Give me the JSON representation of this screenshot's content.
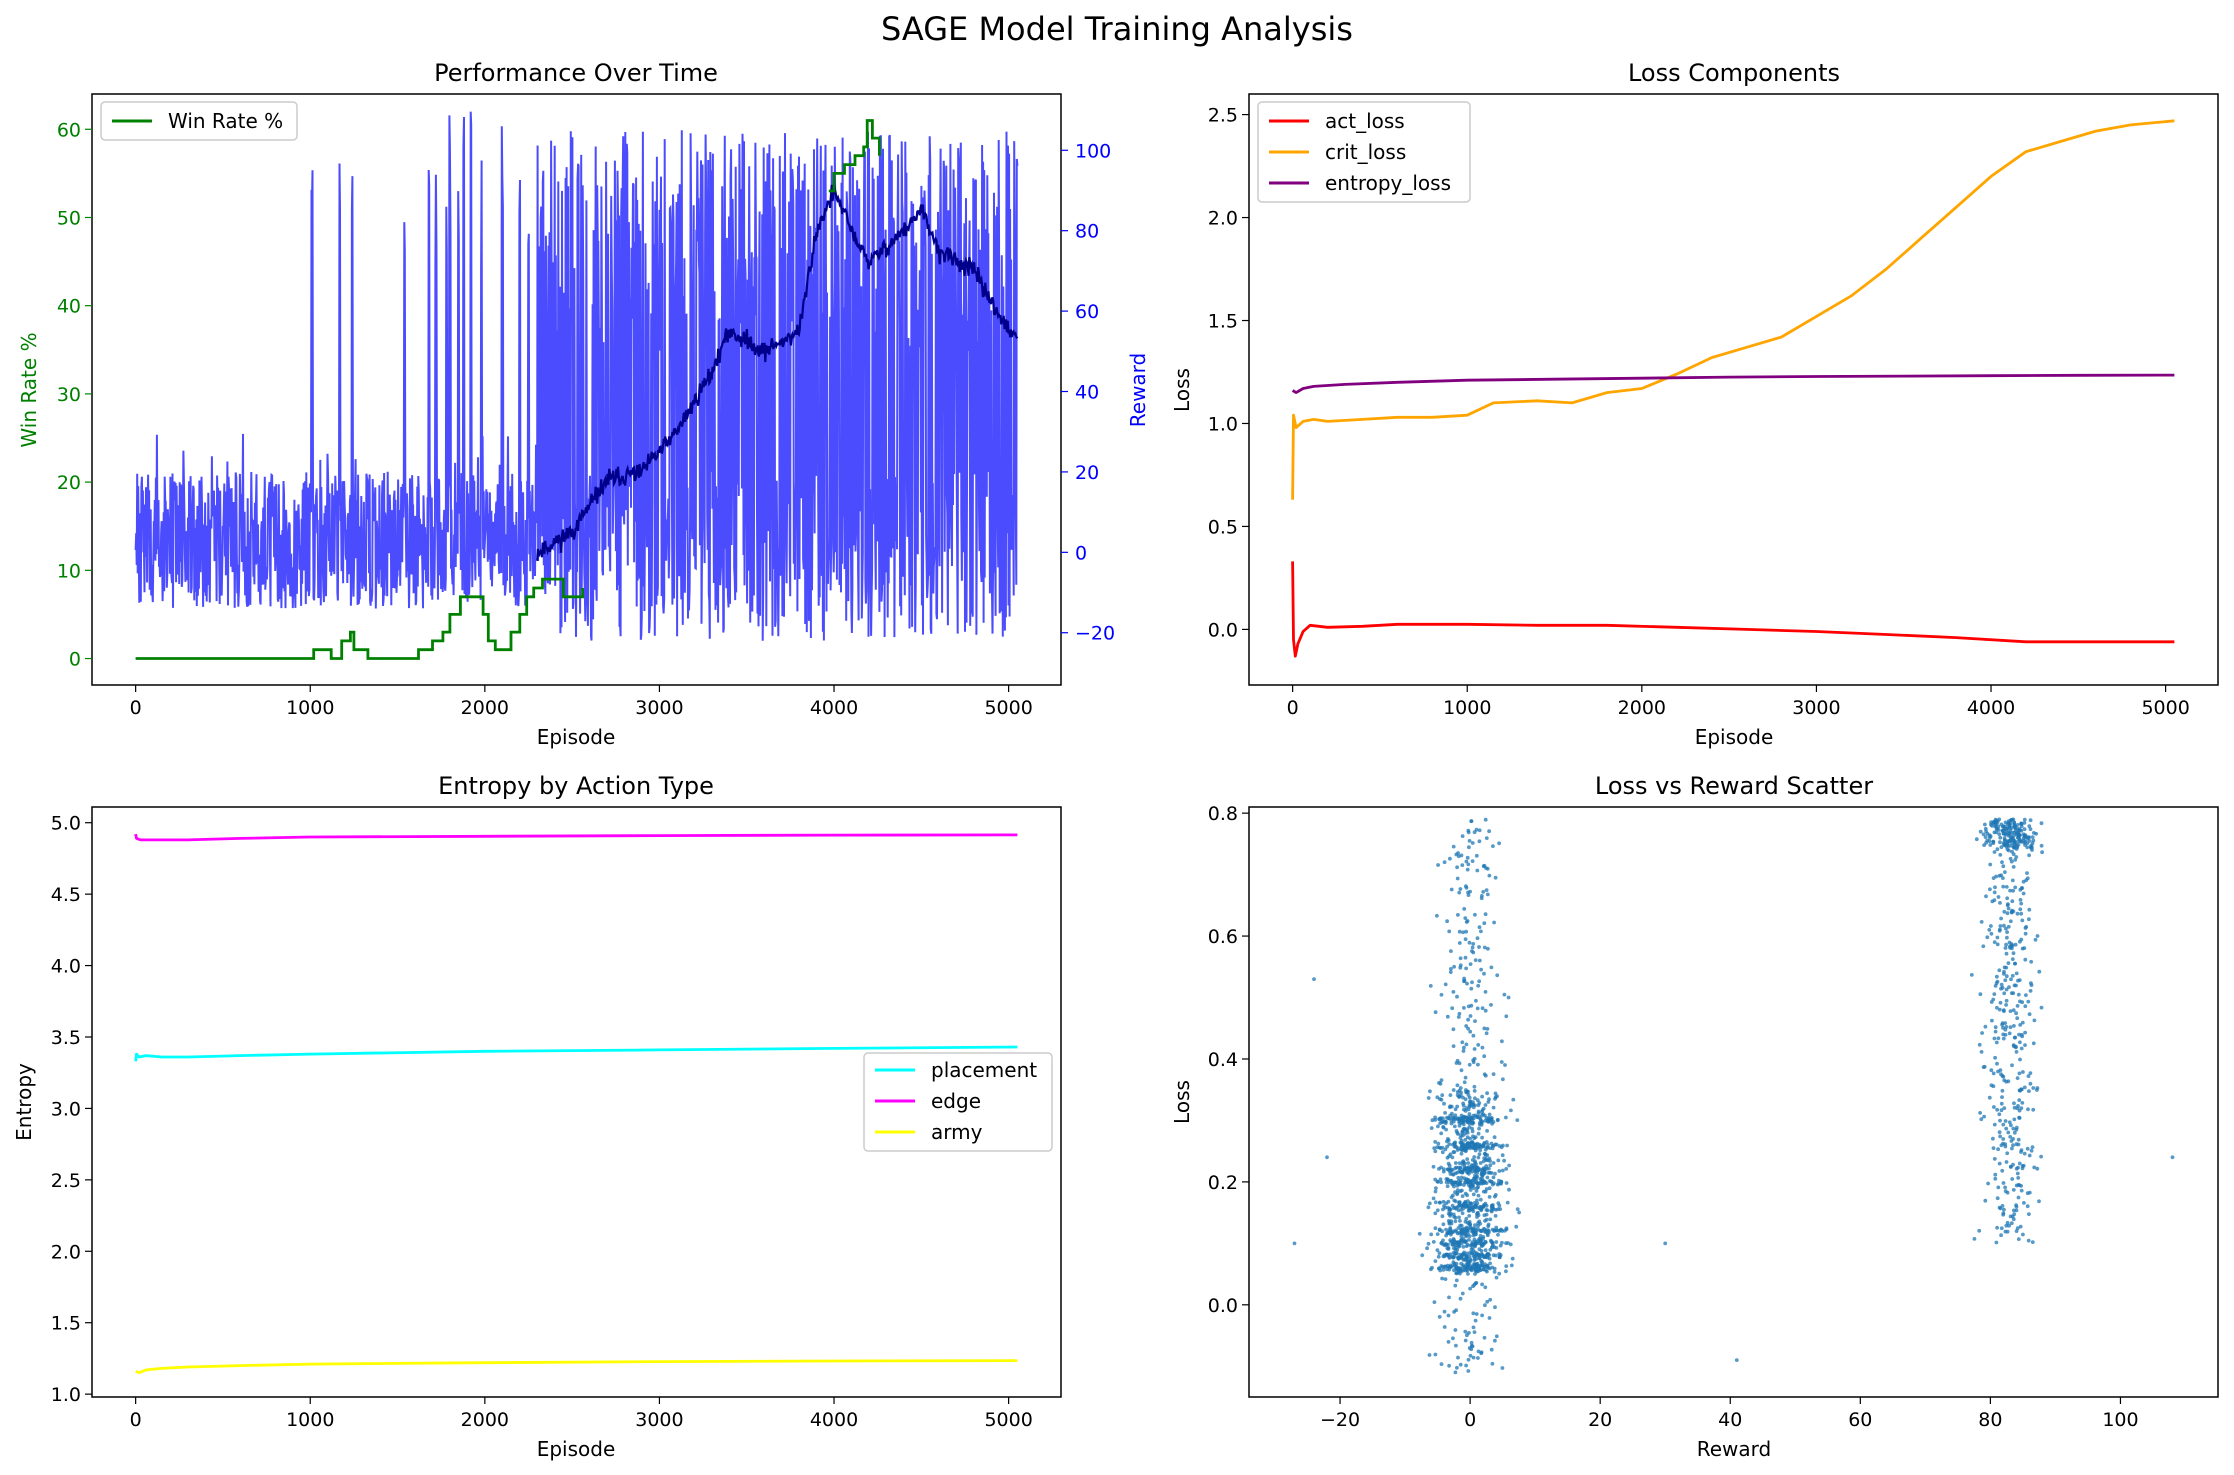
{
  "figure": {
    "suptitle": "SAGE Model Training Analysis"
  },
  "chart_data": [
    {
      "id": "performance",
      "type": "line",
      "title": "Performance Over Time",
      "xlabel": "Episode",
      "ylabel": "Win Rate %",
      "ylabel_right": "Reward",
      "xlim": [
        -250,
        5300
      ],
      "ylim": [
        -3,
        64
      ],
      "ylim_right": [
        -33,
        114
      ],
      "xticks": [
        0,
        1000,
        2000,
        3000,
        4000,
        5000
      ],
      "yticks": [
        0,
        10,
        20,
        30,
        40,
        50,
        60
      ],
      "yticks_right": [
        -20,
        0,
        20,
        40,
        60,
        80,
        100
      ],
      "legend": "upper-left",
      "colors": {
        "win_rate": "#008000",
        "reward": "#0000ff",
        "reward_ma": "#00008b",
        "left_axis": "#008000",
        "right_axis": "#0000ff"
      },
      "series": [
        {
          "name": "Win Rate %",
          "color": "#008000",
          "x": [
            0,
            1000,
            1020,
            1100,
            1120,
            1180,
            1200,
            1230,
            1250,
            1330,
            1600,
            1620,
            1680,
            1700,
            1760,
            1800,
            1840,
            1860,
            1900,
            1960,
            1990,
            2020,
            2060,
            2080,
            2150,
            2200,
            2240,
            2280,
            2330,
            2400,
            2450,
            2500,
            2560
          ],
          "y": [
            0,
            0,
            1,
            1,
            0,
            2,
            2,
            3,
            1,
            0,
            0,
            1,
            1,
            2,
            3,
            5,
            5,
            7,
            7,
            7,
            5,
            2,
            1,
            1,
            3,
            5,
            7,
            8,
            9,
            9,
            7,
            7,
            8
          ]
        },
        {
          "name": "",
          "color": "#008000",
          "x": [
            3970,
            4000,
            4060,
            4120,
            4170,
            4190,
            4220,
            4260
          ],
          "y": [
            53,
            55,
            56,
            57,
            58,
            61,
            59,
            57
          ]
        }
      ],
      "reward": {
        "baseline_range": [
          -20,
          20
        ],
        "high_range_after_2300": [
          -25,
          108
        ],
        "spikes_x": [
          1010,
          1170,
          1240,
          1540,
          1680,
          1720,
          1780,
          1800,
          1850,
          1880,
          1920,
          1980,
          2100,
          2200,
          2250,
          2380,
          2500
        ],
        "moving_average": {
          "x": [
            0,
            2300,
            2500,
            2700,
            2900,
            3100,
            3300,
            3400,
            3600,
            3800,
            3900,
            4000,
            4100,
            4200,
            4400,
            4500,
            4600,
            4800,
            5000,
            5050
          ],
          "y": [
            0,
            0,
            5,
            18,
            20,
            30,
            45,
            55,
            50,
            55,
            80,
            90,
            80,
            72,
            80,
            85,
            75,
            70,
            55,
            53
          ]
        }
      }
    },
    {
      "id": "loss",
      "type": "line",
      "title": "Loss Components",
      "xlabel": "Episode",
      "ylabel": "Loss",
      "xlim": [
        -250,
        5300
      ],
      "ylim": [
        -0.27,
        2.6
      ],
      "xticks": [
        0,
        1000,
        2000,
        3000,
        4000,
        5000
      ],
      "yticks": [
        0.0,
        0.5,
        1.0,
        1.5,
        2.0,
        2.5
      ],
      "legend": "upper-left",
      "series": [
        {
          "name": "act_loss",
          "color": "#ff0000",
          "x": [
            0,
            5,
            15,
            30,
            60,
            100,
            200,
            400,
            600,
            1000,
            1400,
            1800,
            2200,
            2600,
            3000,
            3400,
            3800,
            4200,
            4600,
            5050
          ],
          "y": [
            0.33,
            -0.05,
            -0.13,
            -0.07,
            -0.01,
            0.02,
            0.01,
            0.015,
            0.025,
            0.025,
            0.02,
            0.02,
            0.01,
            0.0,
            -0.01,
            -0.025,
            -0.04,
            -0.06,
            -0.06,
            -0.06
          ]
        },
        {
          "name": "crit_loss",
          "color": "#ffa500",
          "x": [
            0,
            5,
            20,
            60,
            120,
            200,
            400,
            600,
            800,
            1000,
            1150,
            1400,
            1600,
            1800,
            2000,
            2200,
            2400,
            2600,
            2800,
            3000,
            3200,
            3400,
            3600,
            3800,
            4000,
            4200,
            4400,
            4600,
            4800,
            5050
          ],
          "y": [
            0.63,
            1.04,
            0.98,
            1.01,
            1.02,
            1.01,
            1.02,
            1.03,
            1.03,
            1.04,
            1.1,
            1.11,
            1.1,
            1.15,
            1.17,
            1.24,
            1.32,
            1.37,
            1.42,
            1.52,
            1.62,
            1.75,
            1.9,
            2.05,
            2.2,
            2.32,
            2.37,
            2.42,
            2.45,
            2.47
          ]
        },
        {
          "name": "entropy_loss",
          "color": "#800080",
          "x": [
            0,
            20,
            60,
            120,
            300,
            600,
            1000,
            1500,
            2000,
            2500,
            3000,
            3500,
            4000,
            4500,
            5050
          ],
          "y": [
            1.16,
            1.15,
            1.17,
            1.18,
            1.19,
            1.2,
            1.21,
            1.215,
            1.22,
            1.225,
            1.228,
            1.23,
            1.232,
            1.234,
            1.235
          ]
        }
      ]
    },
    {
      "id": "entropy",
      "type": "line",
      "title": "Entropy by Action Type",
      "xlabel": "Episode",
      "ylabel": "Entropy",
      "xlim": [
        -250,
        5300
      ],
      "ylim": [
        0.98,
        5.11
      ],
      "xticks": [
        0,
        1000,
        2000,
        3000,
        4000,
        5000
      ],
      "yticks": [
        1.0,
        1.5,
        2.0,
        2.5,
        3.0,
        3.5,
        4.0,
        4.5,
        5.0
      ],
      "legend": "center-right",
      "series": [
        {
          "name": "placement",
          "color": "#00ffff",
          "x": [
            0,
            5,
            20,
            60,
            150,
            300,
            600,
            1000,
            2000,
            3000,
            4000,
            5050
          ],
          "y": [
            3.33,
            3.38,
            3.36,
            3.37,
            3.36,
            3.36,
            3.37,
            3.38,
            3.4,
            3.41,
            3.42,
            3.43
          ]
        },
        {
          "name": "edge",
          "color": "#ff00ff",
          "x": [
            0,
            5,
            30,
            100,
            300,
            600,
            1000,
            2000,
            3000,
            4000,
            5050
          ],
          "y": [
            4.92,
            4.89,
            4.88,
            4.88,
            4.88,
            4.89,
            4.9,
            4.905,
            4.91,
            4.913,
            4.915
          ]
        },
        {
          "name": "army",
          "color": "#ffff00",
          "x": [
            0,
            20,
            60,
            150,
            300,
            600,
            1000,
            2000,
            3000,
            4000,
            5050
          ],
          "y": [
            1.16,
            1.15,
            1.17,
            1.18,
            1.19,
            1.2,
            1.21,
            1.22,
            1.228,
            1.232,
            1.235
          ]
        }
      ]
    },
    {
      "id": "scatter",
      "type": "scatter",
      "title": "Loss vs Reward Scatter",
      "xlabel": "Reward",
      "ylabel": "Loss",
      "xlim": [
        -34,
        115
      ],
      "ylim": [
        -0.15,
        0.81
      ],
      "xticks": [
        -20,
        0,
        20,
        40,
        60,
        80,
        100
      ],
      "yticks": [
        0.0,
        0.2,
        0.4,
        0.6,
        0.8
      ],
      "color": "#1f77b4",
      "clusters": [
        {
          "x_range": [
            -17,
            20
          ],
          "x_center": 0,
          "y_range": [
            -0.11,
            0.79
          ],
          "y_dense": [
            0.05,
            0.3
          ]
        },
        {
          "x_range": [
            70,
            108
          ],
          "x_center": 83,
          "y_range": [
            0.1,
            0.79
          ],
          "y_dense": [
            0.25,
            0.79
          ]
        }
      ],
      "outliers": [
        [
          -27,
          0.1
        ],
        [
          -24,
          0.53
        ],
        [
          30,
          0.1
        ],
        [
          41,
          -0.09
        ],
        [
          -22,
          0.24
        ],
        [
          108,
          0.24
        ]
      ]
    }
  ]
}
